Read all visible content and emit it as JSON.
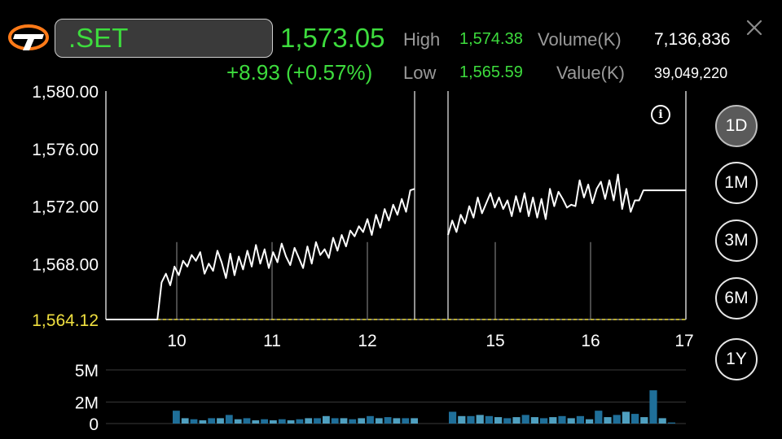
{
  "header": {
    "symbol": ".SET",
    "last_price": "1,573.05",
    "change": "+8.93 (+0.57%)",
    "high_label": "High",
    "high_value": "1,574.38",
    "low_label": "Low",
    "low_value": "1,565.59",
    "volume_label": "Volume(K)",
    "volume_value": "7,136,836",
    "value_label": "Value(K)",
    "value_value": "39,049,220"
  },
  "icons": {
    "logo": "logo-icon",
    "close": "close-icon",
    "info": "info-icon"
  },
  "colors": {
    "up": "#3ddc3d",
    "ref": "#f0e040",
    "line": "#ffffff",
    "volume_bar": "#1f6f99",
    "volume_bar_alt": "#4fa0c0"
  },
  "periods": [
    {
      "label": "1D",
      "active": true
    },
    {
      "label": "1M",
      "active": false
    },
    {
      "label": "3M",
      "active": false
    },
    {
      "label": "6M",
      "active": false
    },
    {
      "label": "1Y",
      "active": false
    }
  ],
  "chart_data": {
    "type": "line",
    "y_ticks": [
      "1,580.00",
      "1,576.00",
      "1,572.00",
      "1,568.00"
    ],
    "ylim": [
      1564.12,
      1580.0
    ],
    "previous_close": "1,564.12",
    "x_ticks": [
      "10",
      "11",
      "12",
      "15",
      "16",
      "17"
    ],
    "price_series_morning": [
      1564.12,
      1564.12,
      1564.12,
      1564.12,
      1564.12,
      1564.12,
      1564.12,
      1564.12,
      1564.12,
      1564.12,
      1564.12,
      1564.12,
      1564.12,
      1566.7,
      1567.3,
      1566.5,
      1567.8,
      1567.2,
      1568.2,
      1567.8,
      1568.6,
      1568.2,
      1568.8,
      1567.3,
      1568.0,
      1567.5,
      1568.9,
      1568.1,
      1567.0,
      1568.7,
      1567.2,
      1568.5,
      1567.6,
      1568.9,
      1567.8,
      1569.3,
      1568.0,
      1569.0,
      1567.7,
      1568.8,
      1568.1,
      1569.4,
      1568.5,
      1567.9,
      1569.1,
      1568.4,
      1567.7,
      1569.2,
      1568.0,
      1569.5,
      1568.6,
      1569.0,
      1568.4,
      1569.8,
      1568.9,
      1570.0,
      1569.2,
      1570.3,
      1569.9,
      1570.6,
      1570.2,
      1571.1,
      1570.0,
      1571.4,
      1570.5,
      1571.8,
      1571.0,
      1572.1,
      1571.4,
      1572.5,
      1571.6,
      1573.1,
      1573.2
    ],
    "price_series_afternoon": [
      1570.0,
      1571.0,
      1570.2,
      1571.4,
      1570.8,
      1572.0,
      1571.2,
      1572.6,
      1571.5,
      1572.2,
      1572.9,
      1571.9,
      1572.6,
      1571.8,
      1572.4,
      1571.3,
      1572.7,
      1571.6,
      1572.9,
      1571.3,
      1572.6,
      1571.2,
      1572.5,
      1571.1,
      1573.2,
      1572.0,
      1573.0,
      1572.5,
      1571.9,
      1572.1,
      1572.0,
      1573.8,
      1572.6,
      1573.5,
      1572.2,
      1573.2,
      1573.7,
      1572.5,
      1573.8,
      1572.4,
      1574.2,
      1571.8,
      1573.2,
      1571.6,
      1572.4,
      1572.4,
      1573.1,
      1573.1,
      1573.1,
      1573.1,
      1573.1,
      1573.1,
      1573.1,
      1573.1,
      1573.1,
      1573.1,
      1573.1
    ],
    "volume_axis_ticks": [
      "5M",
      "2M",
      "0"
    ],
    "volume_max": 5,
    "volume_morning": [
      1.2,
      0.5,
      0.4,
      0.3,
      0.5,
      0.5,
      0.8,
      0.4,
      0.5,
      0.3,
      0.4,
      0.3,
      0.4,
      0.3,
      0.4,
      0.5,
      0.5,
      0.7,
      0.5,
      0.5,
      0.4,
      0.5,
      0.7,
      0.5,
      0.6,
      0.5,
      0.5,
      0.5
    ],
    "volume_afternoon": [
      1.1,
      0.7,
      0.7,
      0.8,
      0.7,
      0.6,
      0.5,
      0.6,
      0.8,
      0.6,
      0.5,
      0.6,
      0.7,
      0.5,
      0.7,
      0.4,
      1.2,
      0.6,
      0.8,
      1.1,
      0.9,
      0.6,
      3.1,
      0.5,
      0.1
    ]
  }
}
